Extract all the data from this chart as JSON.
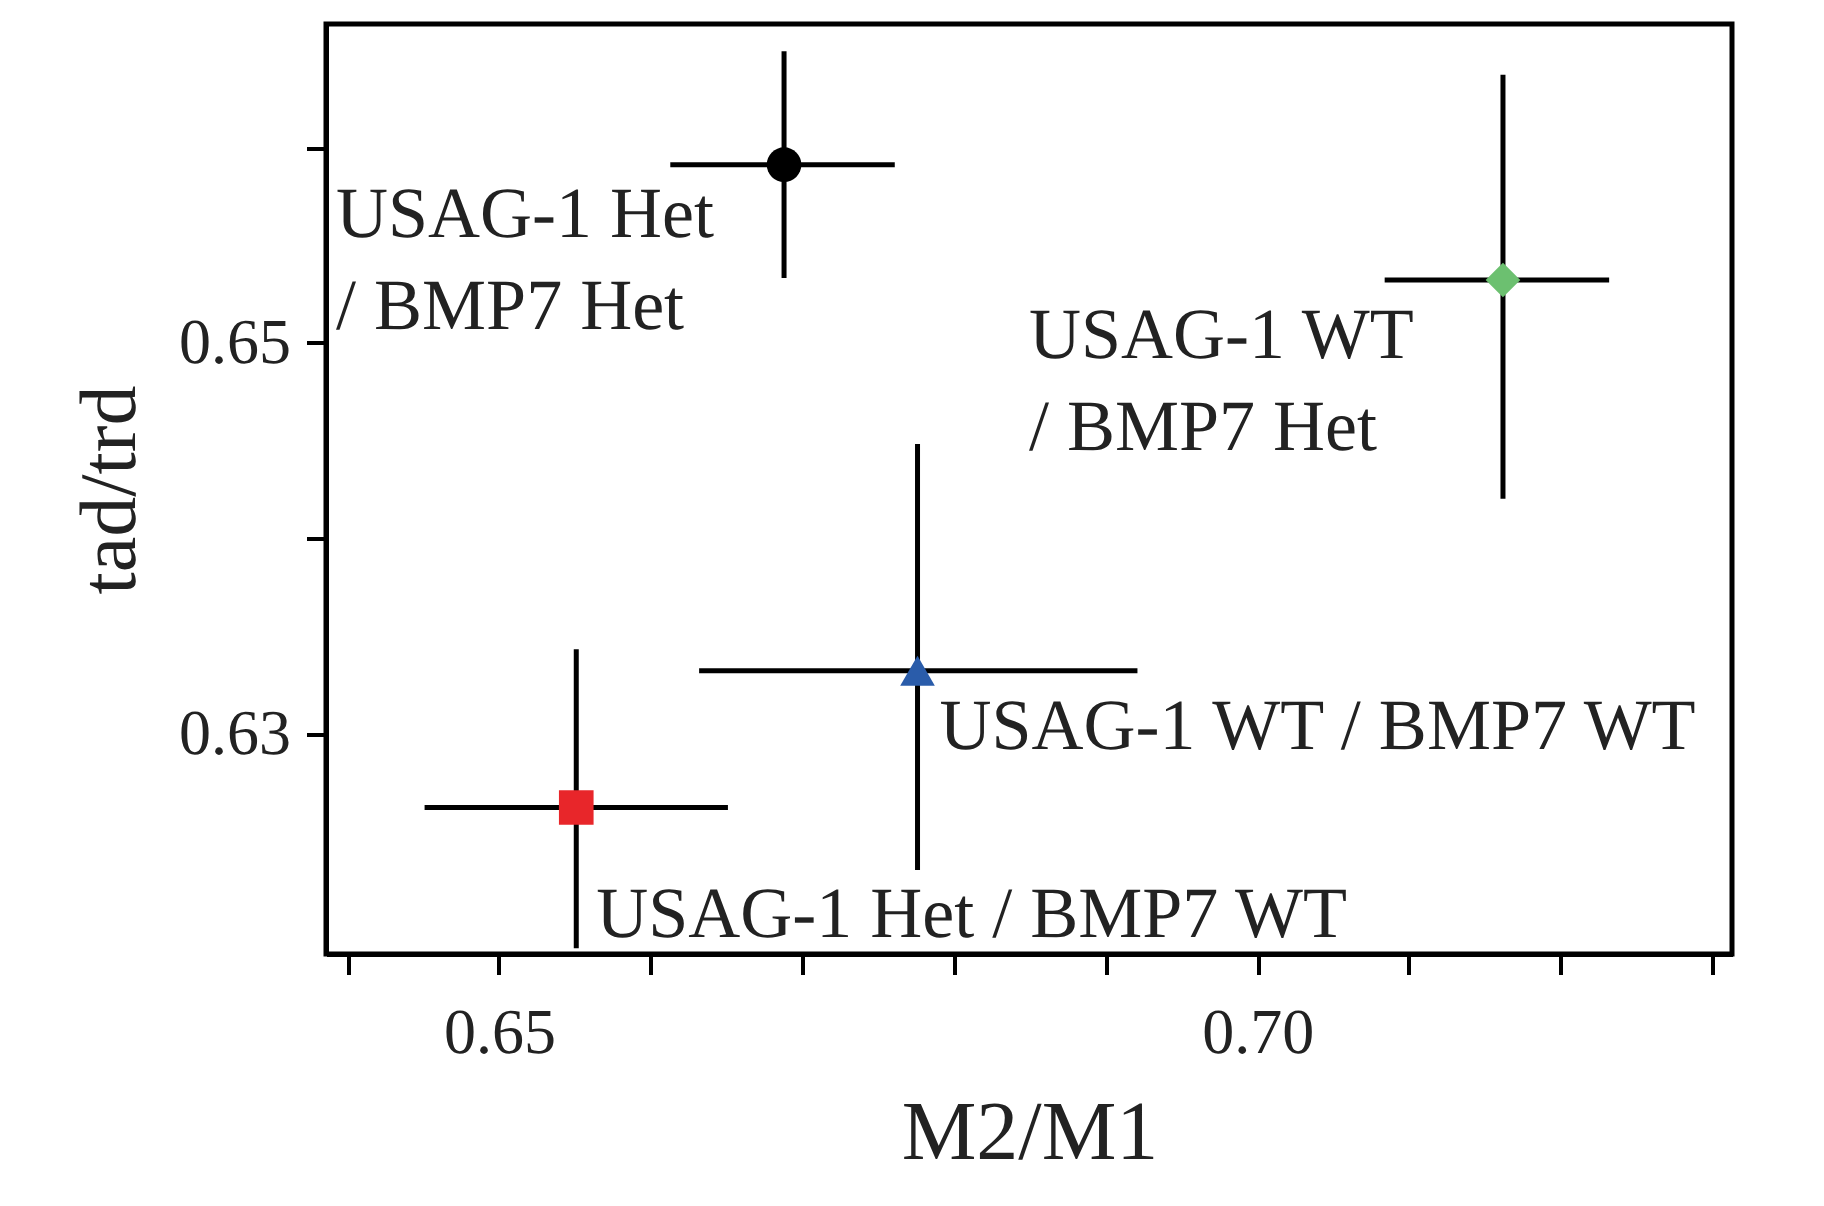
{
  "chart_data": {
    "type": "scatter",
    "xlabel": "M2/M1",
    "ylabel": "tad/trd",
    "xlim": [
      0.6386,
      0.7313
    ],
    "ylim": [
      0.6187,
      0.6663
    ],
    "xticks": [
      {
        "value": 0.64,
        "label": null
      },
      0.65,
      {
        "value": 0.66,
        "label": null
      },
      {
        "value": 0.67,
        "label": null
      },
      {
        "value": 0.68,
        "label": null
      },
      {
        "value": 0.69,
        "label": null
      },
      {
        "value": 0.7,
        "label": "0.70"
      },
      {
        "value": 0.71,
        "label": null
      },
      {
        "value": 0.72,
        "label": null
      },
      {
        "value": 0.73,
        "label": null
      }
    ],
    "yticks": [
      0.63,
      {
        "value": 0.64,
        "label": null
      },
      0.65,
      {
        "value": 0.66,
        "label": null
      }
    ],
    "grid": false,
    "series": [
      {
        "name": "USAG-1 Het\n/ BMP7 Het",
        "color": "#000000",
        "marker": "circle",
        "x": [
          0.6688
        ],
        "values": [
          0.6591
        ],
        "xerrors": [
          [
            0.6613,
            0.6761
          ]
        ],
        "errors": [
          [
            0.6533,
            0.6649
          ]
        ]
      },
      {
        "name": "USAG-1 WT\n/ BMP7 Het",
        "color": "#6cc070",
        "marker": "diamond",
        "x": [
          0.7162
        ],
        "values": [
          0.6532
        ],
        "xerrors": [
          [
            0.7084,
            0.7232
          ]
        ],
        "errors": [
          [
            0.642,
            0.6637
          ]
        ]
      },
      {
        "name": "USAG-1 WT / BMP7 WT",
        "color": "#2a5caa",
        "marker": "triangle",
        "x": [
          0.6776
        ],
        "values": [
          0.6332
        ],
        "xerrors": [
          [
            0.6632,
            0.6921
          ]
        ],
        "errors": [
          [
            0.623,
            0.6448
          ]
        ]
      },
      {
        "name": "USAG-1 Het / BMP7 WT",
        "color": "#e8262a",
        "marker": "square",
        "x": [
          0.6551
        ],
        "values": [
          0.6262
        ],
        "xerrors": [
          [
            0.6451,
            0.6651
          ]
        ],
        "errors": [
          [
            0.619,
            0.6343
          ]
        ]
      }
    ]
  }
}
